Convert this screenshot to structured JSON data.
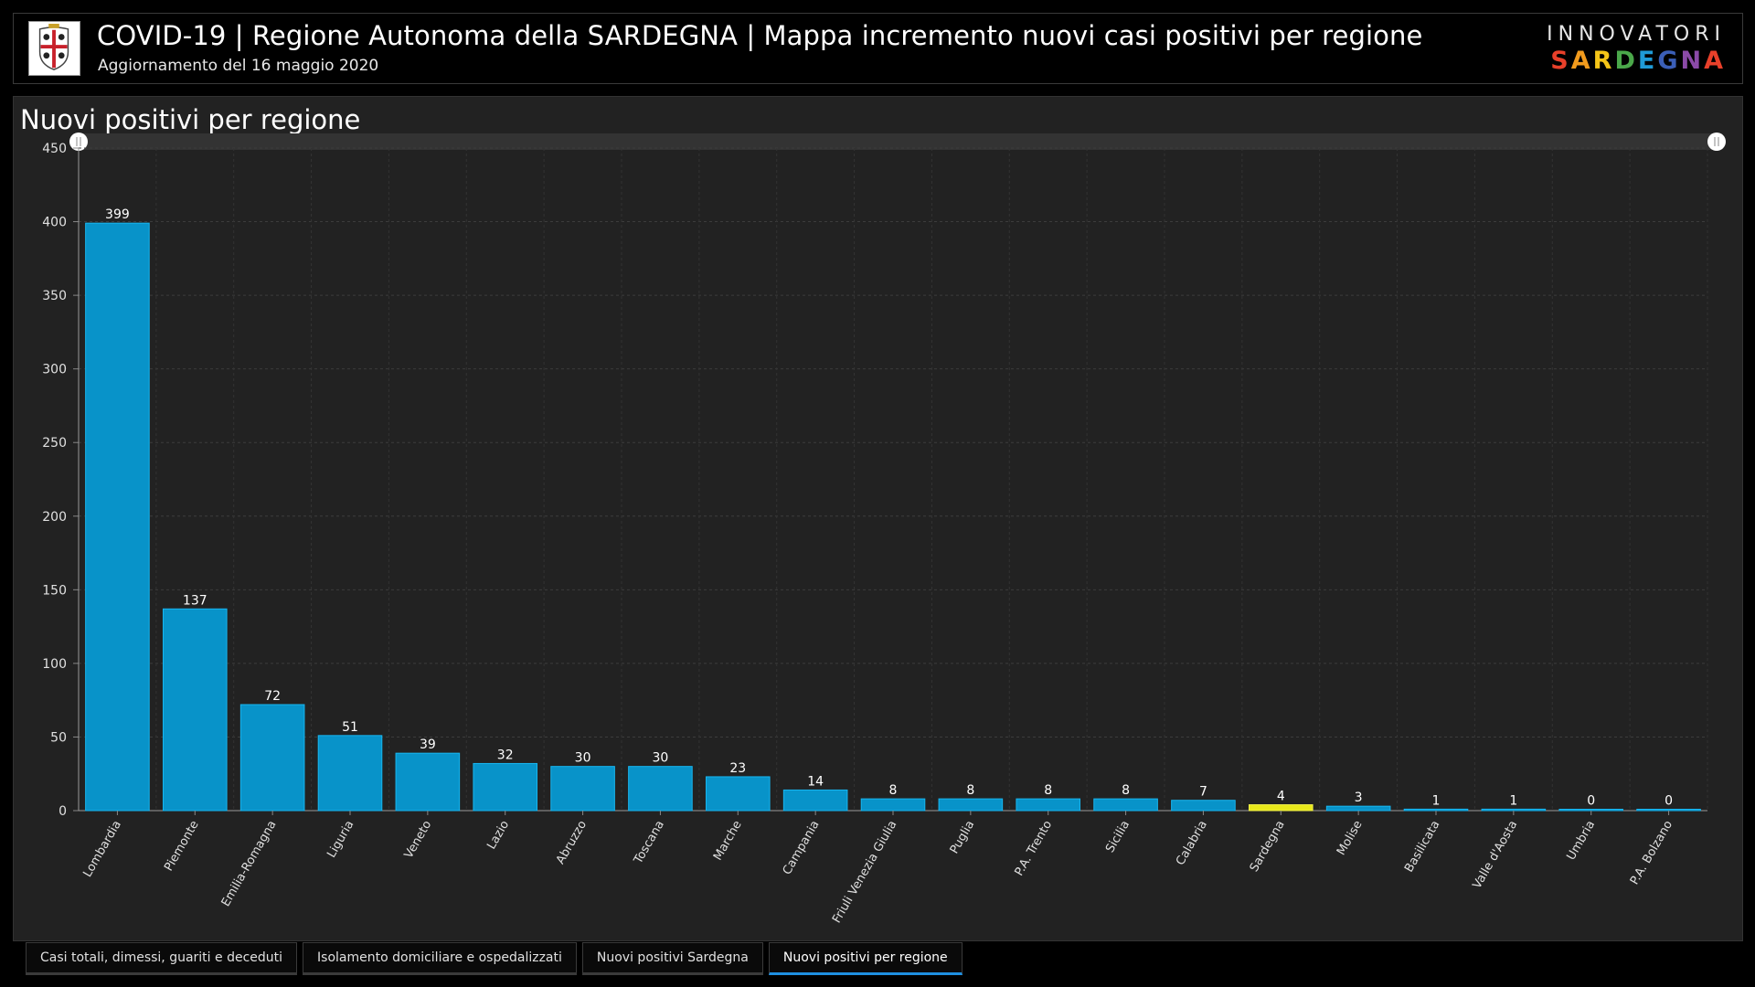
{
  "header": {
    "title": "COVID-19 | Regione Autonoma della SARDEGNA | Mappa incremento nuovi casi positivi per regione",
    "subtitle": "Aggiornamento del 16 maggio 2020",
    "brand_top": "INNOVATORI",
    "brand_bottom": "SARDEGNA",
    "brand_colors": [
      "#e8402a",
      "#f29b1d",
      "#f5c518",
      "#4aa84a",
      "#1f9bd7",
      "#3b5fb8",
      "#8b4aa8",
      "#e8402a"
    ],
    "logo_icon": "sardinia-coat-of-arms-icon"
  },
  "panel": {
    "title": "Nuovi positivi per regione"
  },
  "tabs": [
    {
      "label": "Casi totali, dimessi, guariti e deceduti",
      "active": false
    },
    {
      "label": "Isolamento domiciliare e ospedalizzati",
      "active": false
    },
    {
      "label": "Nuovi positivi Sardegna",
      "active": false
    },
    {
      "label": "Nuovi positivi per regione",
      "active": true
    }
  ],
  "colors": {
    "bar": "#0893c9",
    "bar_border": "#17b6f0",
    "highlight": "#e8e81a",
    "highlight_border": "#f2f24a",
    "tab_active": "#1e8fe0"
  },
  "chart_data": {
    "type": "bar",
    "title": "Nuovi positivi per regione",
    "xlabel": "",
    "ylabel": "",
    "ylim": [
      0,
      450
    ],
    "yticks": [
      0,
      50,
      100,
      150,
      200,
      250,
      300,
      350,
      400,
      450
    ],
    "grid": true,
    "highlight_category": "Sardegna",
    "categories": [
      "Lombardia",
      "Piemonte",
      "Emilia-Romagna",
      "Liguria",
      "Veneto",
      "Lazio",
      "Abruzzo",
      "Toscana",
      "Marche",
      "Campania",
      "Friuli Venezia Giulia",
      "Puglia",
      "P.A. Trento",
      "Sicilia",
      "Calabria",
      "Sardegna",
      "Molise",
      "Basilicata",
      "Valle d'Aosta",
      "Umbria",
      "P.A. Bolzano"
    ],
    "values": [
      399,
      137,
      72,
      51,
      39,
      32,
      30,
      30,
      23,
      14,
      8,
      8,
      8,
      8,
      7,
      4,
      3,
      1,
      1,
      0,
      0
    ]
  }
}
